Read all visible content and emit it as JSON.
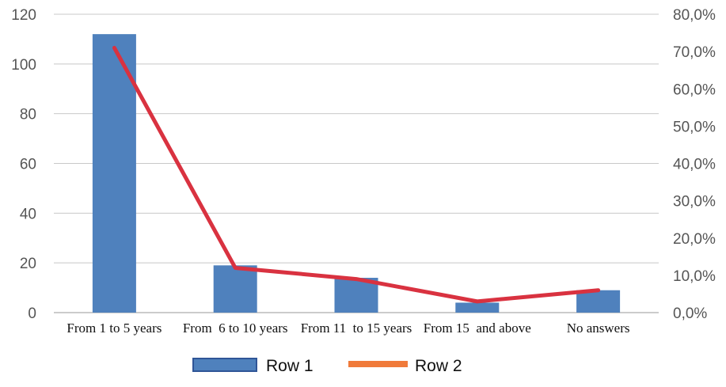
{
  "chart_data": {
    "type": "bar",
    "categories": [
      "From 1 to 5 years",
      "From  6 to 10 years",
      "From 11  to 15 years",
      "From 15  and above",
      "No answers"
    ],
    "series": [
      {
        "name": "Row 1",
        "type": "bar",
        "axis": "left",
        "color": "#4F81BD",
        "values": [
          112,
          19,
          14,
          4,
          9
        ]
      },
      {
        "name": "Row 2",
        "type": "line",
        "axis": "right",
        "color": "#D93240",
        "legend_color": "#F07A3A",
        "values": [
          0.71,
          0.12,
          0.09,
          0.03,
          0.06
        ]
      }
    ],
    "ylim_left": [
      0,
      120
    ],
    "yticks_left": [
      "0",
      "20",
      "40",
      "60",
      "80",
      "100",
      "120"
    ],
    "ylim_right": [
      0,
      0.8
    ],
    "yticks_right": [
      "0,0%",
      "10,0%",
      "20,0%",
      "30,0%",
      "40,0%",
      "50,0%",
      "60,0%",
      "70,0%",
      "80,0%"
    ],
    "grid": true,
    "legend_position": "bottom"
  }
}
